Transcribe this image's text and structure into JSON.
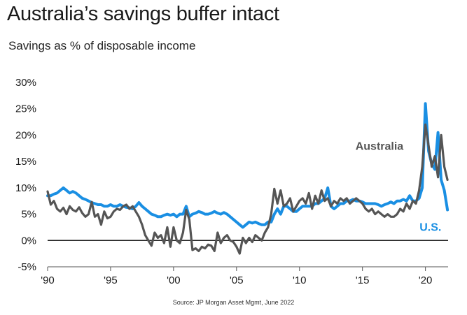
{
  "header": {
    "title": "Australia’s savings buffer intact",
    "subtitle": "Savings as % of disposable income"
  },
  "footer": {
    "source": "Source: JP Morgan Asset Mgmt, June 2022"
  },
  "colors": {
    "australia": "#555555",
    "us": "#1a8fe3",
    "axis": "#555555"
  },
  "chart_data": {
    "type": "line",
    "title": "Australia’s savings buffer intact",
    "subtitle": "Savings as % of disposable income",
    "xlabel": "",
    "ylabel": "",
    "xlim": [
      1990,
      2021.8
    ],
    "ylim": [
      -5,
      30
    ],
    "grid": false,
    "x_ticks": [
      1990,
      1995,
      2000,
      2005,
      2010,
      2015,
      2020
    ],
    "x_tick_labels": [
      "'90",
      "'95",
      "'00",
      "'05",
      "'10",
      "'15",
      "'20"
    ],
    "y_ticks": [
      30,
      25,
      20,
      15,
      10,
      5,
      0,
      -5
    ],
    "y_tick_labels": [
      "30%",
      "25%",
      "20%",
      "15%",
      "10%",
      "5%",
      "0%",
      "-5%"
    ],
    "series": [
      {
        "name": "Australia",
        "label": "Australia",
        "points": [
          [
            1990.0,
            9.3
          ],
          [
            1990.25,
            6.8
          ],
          [
            1990.5,
            7.5
          ],
          [
            1990.75,
            6.0
          ],
          [
            1991.0,
            5.5
          ],
          [
            1991.25,
            6.2
          ],
          [
            1991.5,
            5.0
          ],
          [
            1991.75,
            6.5
          ],
          [
            1992.0,
            5.8
          ],
          [
            1992.25,
            5.5
          ],
          [
            1992.5,
            6.3
          ],
          [
            1992.75,
            5.2
          ],
          [
            1993.0,
            4.5
          ],
          [
            1993.25,
            5.0
          ],
          [
            1993.5,
            7.3
          ],
          [
            1993.75,
            4.5
          ],
          [
            1994.0,
            5.0
          ],
          [
            1994.25,
            3.0
          ],
          [
            1994.5,
            5.5
          ],
          [
            1994.75,
            4.2
          ],
          [
            1995.0,
            4.5
          ],
          [
            1995.25,
            5.5
          ],
          [
            1995.5,
            6.0
          ],
          [
            1995.75,
            5.8
          ],
          [
            1996.0,
            6.5
          ],
          [
            1996.25,
            6.8
          ],
          [
            1996.5,
            6.0
          ],
          [
            1996.75,
            6.5
          ],
          [
            1997.0,
            5.5
          ],
          [
            1997.25,
            4.5
          ],
          [
            1997.5,
            3.0
          ],
          [
            1997.75,
            1.0
          ],
          [
            1998.0,
            0.0
          ],
          [
            1998.25,
            -1.0
          ],
          [
            1998.5,
            1.5
          ],
          [
            1998.75,
            0.5
          ],
          [
            1999.0,
            1.0
          ],
          [
            1999.25,
            -0.5
          ],
          [
            1999.5,
            2.5
          ],
          [
            1999.75,
            -1.2
          ],
          [
            2000.0,
            2.5
          ],
          [
            2000.25,
            0.0
          ],
          [
            2000.5,
            -0.5
          ],
          [
            2000.75,
            1.5
          ],
          [
            2001.0,
            5.8
          ],
          [
            2001.25,
            4.0
          ],
          [
            2001.5,
            -1.8
          ],
          [
            2001.75,
            -1.5
          ],
          [
            2002.0,
            -2.0
          ],
          [
            2002.25,
            -1.2
          ],
          [
            2002.5,
            -1.5
          ],
          [
            2002.75,
            -0.8
          ],
          [
            2003.0,
            -1.0
          ],
          [
            2003.25,
            -2.0
          ],
          [
            2003.5,
            1.5
          ],
          [
            2003.75,
            -0.5
          ],
          [
            2004.0,
            0.5
          ],
          [
            2004.25,
            1.0
          ],
          [
            2004.5,
            0.0
          ],
          [
            2004.75,
            -0.3
          ],
          [
            2005.0,
            -1.2
          ],
          [
            2005.25,
            -2.5
          ],
          [
            2005.5,
            0.5
          ],
          [
            2005.75,
            -0.5
          ],
          [
            2006.0,
            0.5
          ],
          [
            2006.25,
            -0.3
          ],
          [
            2006.5,
            1.0
          ],
          [
            2006.75,
            0.5
          ],
          [
            2007.0,
            0.0
          ],
          [
            2007.25,
            1.5
          ],
          [
            2007.5,
            2.5
          ],
          [
            2007.75,
            5.0
          ],
          [
            2008.0,
            9.8
          ],
          [
            2008.25,
            7.0
          ],
          [
            2008.5,
            9.5
          ],
          [
            2008.75,
            6.5
          ],
          [
            2009.0,
            7.0
          ],
          [
            2009.25,
            8.0
          ],
          [
            2009.5,
            5.5
          ],
          [
            2009.75,
            6.5
          ],
          [
            2010.0,
            7.5
          ],
          [
            2010.25,
            8.0
          ],
          [
            2010.5,
            7.0
          ],
          [
            2010.75,
            9.0
          ],
          [
            2011.0,
            6.0
          ],
          [
            2011.25,
            8.5
          ],
          [
            2011.5,
            7.0
          ],
          [
            2011.75,
            9.5
          ],
          [
            2012.0,
            7.5
          ],
          [
            2012.25,
            8.0
          ],
          [
            2012.5,
            6.5
          ],
          [
            2012.75,
            7.5
          ],
          [
            2013.0,
            7.0
          ],
          [
            2013.25,
            8.0
          ],
          [
            2013.5,
            7.5
          ],
          [
            2013.75,
            8.0
          ],
          [
            2014.0,
            7.0
          ],
          [
            2014.25,
            7.5
          ],
          [
            2014.5,
            8.0
          ],
          [
            2014.75,
            7.5
          ],
          [
            2015.0,
            7.0
          ],
          [
            2015.25,
            6.0
          ],
          [
            2015.5,
            5.5
          ],
          [
            2015.75,
            6.0
          ],
          [
            2016.0,
            5.0
          ],
          [
            2016.25,
            5.5
          ],
          [
            2016.5,
            5.0
          ],
          [
            2016.75,
            4.5
          ],
          [
            2017.0,
            5.0
          ],
          [
            2017.25,
            4.5
          ],
          [
            2017.5,
            4.5
          ],
          [
            2017.75,
            5.0
          ],
          [
            2018.0,
            6.0
          ],
          [
            2018.25,
            5.5
          ],
          [
            2018.5,
            7.0
          ],
          [
            2018.75,
            6.0
          ],
          [
            2019.0,
            7.5
          ],
          [
            2019.25,
            7.0
          ],
          [
            2019.5,
            9.5
          ],
          [
            2019.75,
            14.0
          ],
          [
            2020.0,
            22.0
          ],
          [
            2020.25,
            18.0
          ],
          [
            2020.5,
            14.0
          ],
          [
            2020.75,
            16.0
          ],
          [
            2021.0,
            12.0
          ],
          [
            2021.25,
            20.0
          ],
          [
            2021.5,
            14.0
          ],
          [
            2021.75,
            11.5
          ]
        ]
      },
      {
        "name": "U.S.",
        "label": "U.S.",
        "points": [
          [
            1990.0,
            8.5
          ],
          [
            1990.25,
            8.5
          ],
          [
            1990.5,
            8.8
          ],
          [
            1990.75,
            9.0
          ],
          [
            1991.0,
            9.5
          ],
          [
            1991.25,
            10.0
          ],
          [
            1991.5,
            9.5
          ],
          [
            1991.75,
            9.0
          ],
          [
            1992.0,
            9.3
          ],
          [
            1992.25,
            9.0
          ],
          [
            1992.5,
            8.5
          ],
          [
            1992.75,
            8.0
          ],
          [
            1993.0,
            7.8
          ],
          [
            1993.25,
            7.5
          ],
          [
            1993.5,
            7.2
          ],
          [
            1993.75,
            7.0
          ],
          [
            1994.0,
            6.8
          ],
          [
            1994.25,
            6.8
          ],
          [
            1994.5,
            6.5
          ],
          [
            1994.75,
            6.5
          ],
          [
            1995.0,
            6.8
          ],
          [
            1995.25,
            6.5
          ],
          [
            1995.5,
            6.5
          ],
          [
            1995.75,
            6.8
          ],
          [
            1996.0,
            6.5
          ],
          [
            1996.25,
            6.3
          ],
          [
            1996.5,
            6.2
          ],
          [
            1996.75,
            6.0
          ],
          [
            1997.0,
            6.5
          ],
          [
            1997.25,
            7.2
          ],
          [
            1997.5,
            6.5
          ],
          [
            1997.75,
            6.0
          ],
          [
            1998.0,
            5.5
          ],
          [
            1998.25,
            5.0
          ],
          [
            1998.5,
            4.8
          ],
          [
            1998.75,
            4.5
          ],
          [
            1999.0,
            4.5
          ],
          [
            1999.25,
            4.8
          ],
          [
            1999.5,
            5.0
          ],
          [
            1999.75,
            4.8
          ],
          [
            2000.0,
            5.0
          ],
          [
            2000.25,
            4.5
          ],
          [
            2000.5,
            5.0
          ],
          [
            2000.75,
            5.0
          ],
          [
            2001.0,
            6.5
          ],
          [
            2001.25,
            4.5
          ],
          [
            2001.5,
            5.0
          ],
          [
            2001.75,
            5.2
          ],
          [
            2002.0,
            5.5
          ],
          [
            2002.25,
            5.3
          ],
          [
            2002.5,
            5.0
          ],
          [
            2002.75,
            5.0
          ],
          [
            2003.0,
            5.2
          ],
          [
            2003.25,
            5.5
          ],
          [
            2003.5,
            5.2
          ],
          [
            2003.75,
            5.0
          ],
          [
            2004.0,
            5.3
          ],
          [
            2004.25,
            5.0
          ],
          [
            2004.5,
            4.5
          ],
          [
            2004.75,
            4.0
          ],
          [
            2005.0,
            3.5
          ],
          [
            2005.25,
            3.0
          ],
          [
            2005.5,
            2.5
          ],
          [
            2005.75,
            3.0
          ],
          [
            2006.0,
            3.5
          ],
          [
            2006.25,
            3.3
          ],
          [
            2006.5,
            3.5
          ],
          [
            2006.75,
            3.2
          ],
          [
            2007.0,
            3.0
          ],
          [
            2007.25,
            3.0
          ],
          [
            2007.5,
            3.5
          ],
          [
            2007.75,
            3.5
          ],
          [
            2008.0,
            5.0
          ],
          [
            2008.25,
            6.0
          ],
          [
            2008.5,
            5.0
          ],
          [
            2008.75,
            6.5
          ],
          [
            2009.0,
            6.5
          ],
          [
            2009.25,
            6.0
          ],
          [
            2009.5,
            5.5
          ],
          [
            2009.75,
            5.5
          ],
          [
            2010.0,
            6.0
          ],
          [
            2010.25,
            6.5
          ],
          [
            2010.5,
            6.5
          ],
          [
            2010.75,
            6.5
          ],
          [
            2011.0,
            6.5
          ],
          [
            2011.25,
            7.0
          ],
          [
            2011.5,
            7.0
          ],
          [
            2011.75,
            7.5
          ],
          [
            2012.0,
            8.0
          ],
          [
            2012.25,
            10.0
          ],
          [
            2012.5,
            6.5
          ],
          [
            2012.75,
            6.0
          ],
          [
            2013.0,
            6.5
          ],
          [
            2013.25,
            7.0
          ],
          [
            2013.5,
            7.0
          ],
          [
            2013.75,
            7.5
          ],
          [
            2014.0,
            7.5
          ],
          [
            2014.25,
            7.8
          ],
          [
            2014.5,
            7.5
          ],
          [
            2014.75,
            7.5
          ],
          [
            2015.0,
            7.3
          ],
          [
            2015.25,
            7.0
          ],
          [
            2015.5,
            7.0
          ],
          [
            2015.75,
            7.0
          ],
          [
            2016.0,
            7.0
          ],
          [
            2016.25,
            6.8
          ],
          [
            2016.5,
            6.5
          ],
          [
            2016.75,
            6.8
          ],
          [
            2017.0,
            7.0
          ],
          [
            2017.25,
            7.3
          ],
          [
            2017.5,
            7.0
          ],
          [
            2017.75,
            7.5
          ],
          [
            2018.0,
            7.5
          ],
          [
            2018.25,
            7.8
          ],
          [
            2018.5,
            7.5
          ],
          [
            2018.75,
            8.5
          ],
          [
            2019.0,
            7.5
          ],
          [
            2019.25,
            7.5
          ],
          [
            2019.5,
            8.0
          ],
          [
            2019.75,
            10.0
          ],
          [
            2020.0,
            26.0
          ],
          [
            2020.25,
            17.0
          ],
          [
            2020.5,
            14.5
          ],
          [
            2020.75,
            13.5
          ],
          [
            2021.0,
            20.5
          ],
          [
            2021.25,
            11.5
          ],
          [
            2021.5,
            9.5
          ],
          [
            2021.75,
            5.8
          ]
        ]
      }
    ]
  }
}
